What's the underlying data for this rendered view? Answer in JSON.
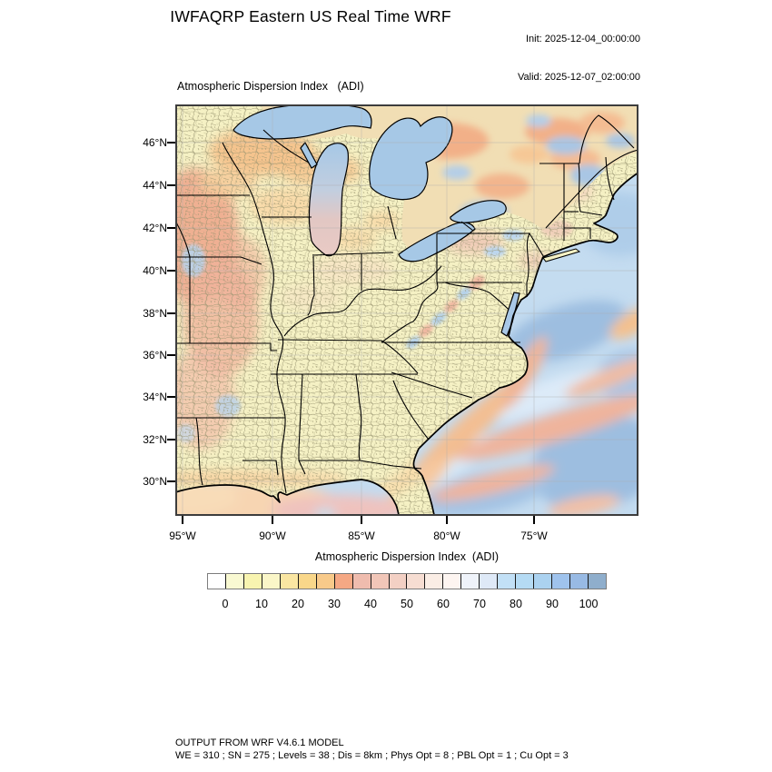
{
  "header": {
    "title": "IWFAQRP Eastern US Real Time WRF",
    "init": "Init: 2025-12-04_00:00:00",
    "valid": "Valid: 2025-12-07_02:00:00"
  },
  "map": {
    "subtitle": "Atmospheric Dispersion Index   (ADI)",
    "lat_labels": [
      "46°N",
      "44°N",
      "42°N",
      "40°N",
      "38°N",
      "36°N",
      "34°N",
      "32°N",
      "30°N"
    ],
    "lon_labels": [
      "95°W",
      "90°W",
      "85°W",
      "80°W",
      "75°W"
    ]
  },
  "colorbar": {
    "title": "Atmospheric Dispersion Index  (ADI)",
    "tick_labels": [
      "0",
      "10",
      "20",
      "30",
      "40",
      "50",
      "60",
      "70",
      "80",
      "90",
      "100"
    ],
    "range_min": 0,
    "range_max": 100,
    "cell_colors": [
      "#FFFFFF",
      "#F9F9D2",
      "#F8F4B0",
      "#FAF6C8",
      "#FAE6A2",
      "#F9D78A",
      "#F8CA8A",
      "#F5A884",
      "#EFBCAE",
      "#F1C6B8",
      "#F3D0C4",
      "#F6DDD2",
      "#FAEDE5",
      "#FDF5F1",
      "#EFF3FA",
      "#DEE9F7",
      "#C2E0F6",
      "#B5DBF4",
      "#ABD2F0",
      "#9FC3ED",
      "#98BAE4",
      "#8FAECC"
    ]
  },
  "footer": {
    "line1": "OUTPUT FROM WRF V4.6.1 MODEL",
    "line2": "WE = 310 ; SN = 275 ; Levels = 38 ; Dis = 8km ; Phys Opt = 8 ; PBL Opt = 1 ; Cu Opt = 3"
  },
  "colors": {
    "land": "#F5F1C4",
    "canada_land": "#F1DEB4",
    "ocean": "#C4DCF0",
    "lake": "#A6C8E6",
    "county_line": "#97936F",
    "border_line": "#000000"
  }
}
